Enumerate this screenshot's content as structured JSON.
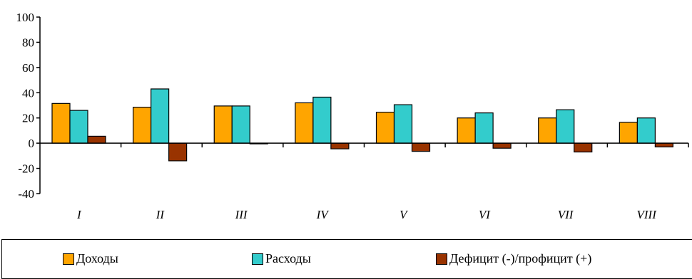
{
  "colors": {
    "revenue": "#FFA500",
    "expense": "#33CCCC",
    "balance": "#993300"
  },
  "chart_data": {
    "type": "bar",
    "categories": [
      "I",
      "II",
      "III",
      "IV",
      "V",
      "VI",
      "VII",
      "VIII"
    ],
    "series": [
      {
        "name": "Доходы",
        "values": [
          31.5,
          28.5,
          29.5,
          32,
          24.5,
          20,
          20,
          16.5
        ]
      },
      {
        "name": "Расходы",
        "values": [
          26,
          43,
          29.5,
          36.5,
          30.5,
          24,
          26.5,
          20
        ]
      },
      {
        "name": "Дефицит (-)/профицит (+)",
        "values": [
          5.5,
          -14,
          0,
          -4.5,
          -6.5,
          -4,
          -7,
          -3
        ]
      }
    ],
    "ylim": [
      -40,
      100
    ],
    "yticks": [
      100,
      80,
      60,
      40,
      20,
      0,
      -20,
      -40
    ],
    "title": "",
    "xlabel": "",
    "ylabel": "",
    "legend_position": "bottom"
  }
}
